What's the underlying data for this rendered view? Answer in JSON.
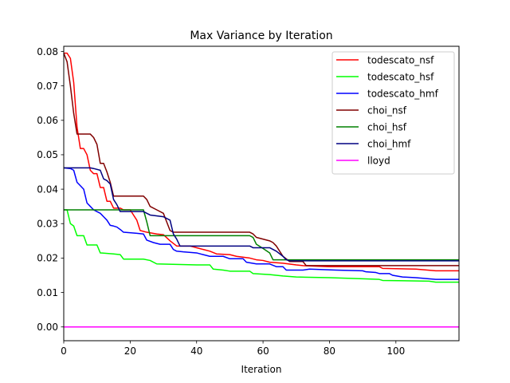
{
  "chart_data": {
    "type": "line",
    "title": "Max Variance by Iteration",
    "xlabel": "Iteration",
    "ylabel": "",
    "xlim": [
      0,
      119
    ],
    "ylim": [
      -0.004,
      0.0815
    ],
    "xticks": [
      0,
      20,
      40,
      60,
      80,
      100
    ],
    "yticks": [
      0.0,
      0.01,
      0.02,
      0.03,
      0.04,
      0.05,
      0.06,
      0.07,
      0.08
    ],
    "ytick_labels": [
      "0.00",
      "0.01",
      "0.02",
      "0.03",
      "0.04",
      "0.05",
      "0.06",
      "0.07",
      "0.08"
    ],
    "grid": false,
    "legend_position": "top-right",
    "series": [
      {
        "name": "todescato_nsf",
        "color": "#ff0000",
        "points": [
          [
            0,
            0.0795
          ],
          [
            1,
            0.0795
          ],
          [
            2,
            0.078
          ],
          [
            3,
            0.071
          ],
          [
            4,
            0.058
          ],
          [
            5,
            0.0518
          ],
          [
            6,
            0.0518
          ],
          [
            7,
            0.05
          ],
          [
            8,
            0.0455
          ],
          [
            9,
            0.0445
          ],
          [
            10,
            0.0445
          ],
          [
            11,
            0.0405
          ],
          [
            12,
            0.0405
          ],
          [
            13,
            0.0365
          ],
          [
            14,
            0.0365
          ],
          [
            15,
            0.0345
          ],
          [
            16,
            0.0345
          ],
          [
            17,
            0.0345
          ],
          [
            18,
            0.034
          ],
          [
            20,
            0.034
          ],
          [
            22,
            0.031
          ],
          [
            23,
            0.028
          ],
          [
            25,
            0.0275
          ],
          [
            28,
            0.027
          ],
          [
            30,
            0.0268
          ],
          [
            32,
            0.025
          ],
          [
            34,
            0.0235
          ],
          [
            38,
            0.0235
          ],
          [
            40,
            0.023
          ],
          [
            42,
            0.0225
          ],
          [
            44,
            0.022
          ],
          [
            46,
            0.0212
          ],
          [
            50,
            0.021
          ],
          [
            52,
            0.0205
          ],
          [
            56,
            0.02
          ],
          [
            58,
            0.0195
          ],
          [
            60,
            0.0193
          ],
          [
            62,
            0.0188
          ],
          [
            66,
            0.0185
          ],
          [
            70,
            0.018
          ],
          [
            72,
            0.0178
          ],
          [
            80,
            0.0175
          ],
          [
            95,
            0.0175
          ],
          [
            96,
            0.017
          ],
          [
            106,
            0.0168
          ],
          [
            112,
            0.0163
          ],
          [
            119,
            0.0163
          ]
        ]
      },
      {
        "name": "todescato_hsf",
        "color": "#00ff00",
        "points": [
          [
            0,
            0.034
          ],
          [
            1,
            0.034
          ],
          [
            2,
            0.03
          ],
          [
            3,
            0.0293
          ],
          [
            4,
            0.0265
          ],
          [
            6,
            0.0265
          ],
          [
            7,
            0.0238
          ],
          [
            10,
            0.0238
          ],
          [
            11,
            0.0215
          ],
          [
            15,
            0.0212
          ],
          [
            17,
            0.021
          ],
          [
            18,
            0.0197
          ],
          [
            24,
            0.0197
          ],
          [
            26,
            0.0193
          ],
          [
            28,
            0.0183
          ],
          [
            40,
            0.018
          ],
          [
            44,
            0.018
          ],
          [
            45,
            0.0168
          ],
          [
            48,
            0.0165
          ],
          [
            50,
            0.0162
          ],
          [
            56,
            0.0162
          ],
          [
            57,
            0.0155
          ],
          [
            62,
            0.0152
          ],
          [
            66,
            0.0148
          ],
          [
            70,
            0.0145
          ],
          [
            80,
            0.0143
          ],
          [
            90,
            0.014
          ],
          [
            95,
            0.0138
          ],
          [
            96,
            0.0135
          ],
          [
            110,
            0.0133
          ],
          [
            112,
            0.013
          ],
          [
            119,
            0.013
          ]
        ]
      },
      {
        "name": "todescato_hmf",
        "color": "#0000ff",
        "points": [
          [
            0,
            0.0462
          ],
          [
            2,
            0.046
          ],
          [
            3,
            0.0455
          ],
          [
            4,
            0.042
          ],
          [
            5,
            0.041
          ],
          [
            6,
            0.04
          ],
          [
            7,
            0.036
          ],
          [
            8,
            0.035
          ],
          [
            9,
            0.034
          ],
          [
            10,
            0.0335
          ],
          [
            11,
            0.033
          ],
          [
            12,
            0.032
          ],
          [
            13,
            0.031
          ],
          [
            14,
            0.0295
          ],
          [
            15,
            0.0293
          ],
          [
            16,
            0.029
          ],
          [
            17,
            0.0283
          ],
          [
            18,
            0.0275
          ],
          [
            22,
            0.0272
          ],
          [
            24,
            0.027
          ],
          [
            25,
            0.0252
          ],
          [
            27,
            0.0245
          ],
          [
            29,
            0.024
          ],
          [
            32,
            0.024
          ],
          [
            33,
            0.0225
          ],
          [
            34,
            0.022
          ],
          [
            36,
            0.0218
          ],
          [
            40,
            0.0215
          ],
          [
            42,
            0.021
          ],
          [
            44,
            0.0205
          ],
          [
            48,
            0.0205
          ],
          [
            50,
            0.0198
          ],
          [
            54,
            0.0198
          ],
          [
            55,
            0.0188
          ],
          [
            58,
            0.0183
          ],
          [
            62,
            0.0183
          ],
          [
            64,
            0.0175
          ],
          [
            66,
            0.0175
          ],
          [
            67,
            0.0165
          ],
          [
            72,
            0.0165
          ],
          [
            74,
            0.0168
          ],
          [
            82,
            0.0165
          ],
          [
            90,
            0.0163
          ],
          [
            91,
            0.016
          ],
          [
            94,
            0.0158
          ],
          [
            95,
            0.0155
          ],
          [
            98,
            0.0155
          ],
          [
            99,
            0.015
          ],
          [
            102,
            0.0145
          ],
          [
            106,
            0.0143
          ],
          [
            112,
            0.0138
          ],
          [
            119,
            0.0138
          ]
        ]
      },
      {
        "name": "choi_nsf",
        "color": "#800000",
        "points": [
          [
            0,
            0.0795
          ],
          [
            1,
            0.077
          ],
          [
            2,
            0.07
          ],
          [
            3,
            0.062
          ],
          [
            4,
            0.056
          ],
          [
            8,
            0.056
          ],
          [
            9,
            0.055
          ],
          [
            10,
            0.053
          ],
          [
            11,
            0.0475
          ],
          [
            12,
            0.0475
          ],
          [
            13,
            0.045
          ],
          [
            14,
            0.042
          ],
          [
            15,
            0.038
          ],
          [
            24,
            0.038
          ],
          [
            25,
            0.037
          ],
          [
            26,
            0.035
          ],
          [
            28,
            0.034
          ],
          [
            30,
            0.033
          ],
          [
            31,
            0.0305
          ],
          [
            32,
            0.028
          ],
          [
            33,
            0.0275
          ],
          [
            56,
            0.0275
          ],
          [
            57,
            0.027
          ],
          [
            58,
            0.026
          ],
          [
            62,
            0.025
          ],
          [
            63,
            0.0245
          ],
          [
            64,
            0.0235
          ],
          [
            66,
            0.0205
          ],
          [
            68,
            0.019
          ],
          [
            72,
            0.019
          ],
          [
            73,
            0.0178
          ],
          [
            119,
            0.0178
          ]
        ]
      },
      {
        "name": "choi_hsf",
        "color": "#008000",
        "points": [
          [
            0,
            0.034
          ],
          [
            24,
            0.034
          ],
          [
            25,
            0.0305
          ],
          [
            26,
            0.0265
          ],
          [
            56,
            0.0265
          ],
          [
            57,
            0.026
          ],
          [
            58,
            0.024
          ],
          [
            60,
            0.0228
          ],
          [
            62,
            0.0215
          ],
          [
            63,
            0.0195
          ],
          [
            68,
            0.0195
          ],
          [
            119,
            0.0195
          ]
        ]
      },
      {
        "name": "choi_hmf",
        "color": "#000080",
        "points": [
          [
            0,
            0.0462
          ],
          [
            8,
            0.0462
          ],
          [
            9,
            0.046
          ],
          [
            11,
            0.0455
          ],
          [
            12,
            0.043
          ],
          [
            13,
            0.0425
          ],
          [
            14,
            0.0415
          ],
          [
            15,
            0.037
          ],
          [
            16,
            0.0355
          ],
          [
            17,
            0.0335
          ],
          [
            24,
            0.0335
          ],
          [
            26,
            0.0325
          ],
          [
            30,
            0.032
          ],
          [
            32,
            0.031
          ],
          [
            33,
            0.027
          ],
          [
            34,
            0.0255
          ],
          [
            35,
            0.0235
          ],
          [
            56,
            0.0235
          ],
          [
            57,
            0.023
          ],
          [
            62,
            0.023
          ],
          [
            64,
            0.022
          ],
          [
            66,
            0.0205
          ],
          [
            67,
            0.0195
          ],
          [
            68,
            0.0192
          ],
          [
            119,
            0.0192
          ]
        ]
      },
      {
        "name": "lloyd",
        "color": "#ff00ff",
        "points": [
          [
            0,
            0.0
          ],
          [
            119,
            0.0
          ]
        ]
      }
    ]
  }
}
